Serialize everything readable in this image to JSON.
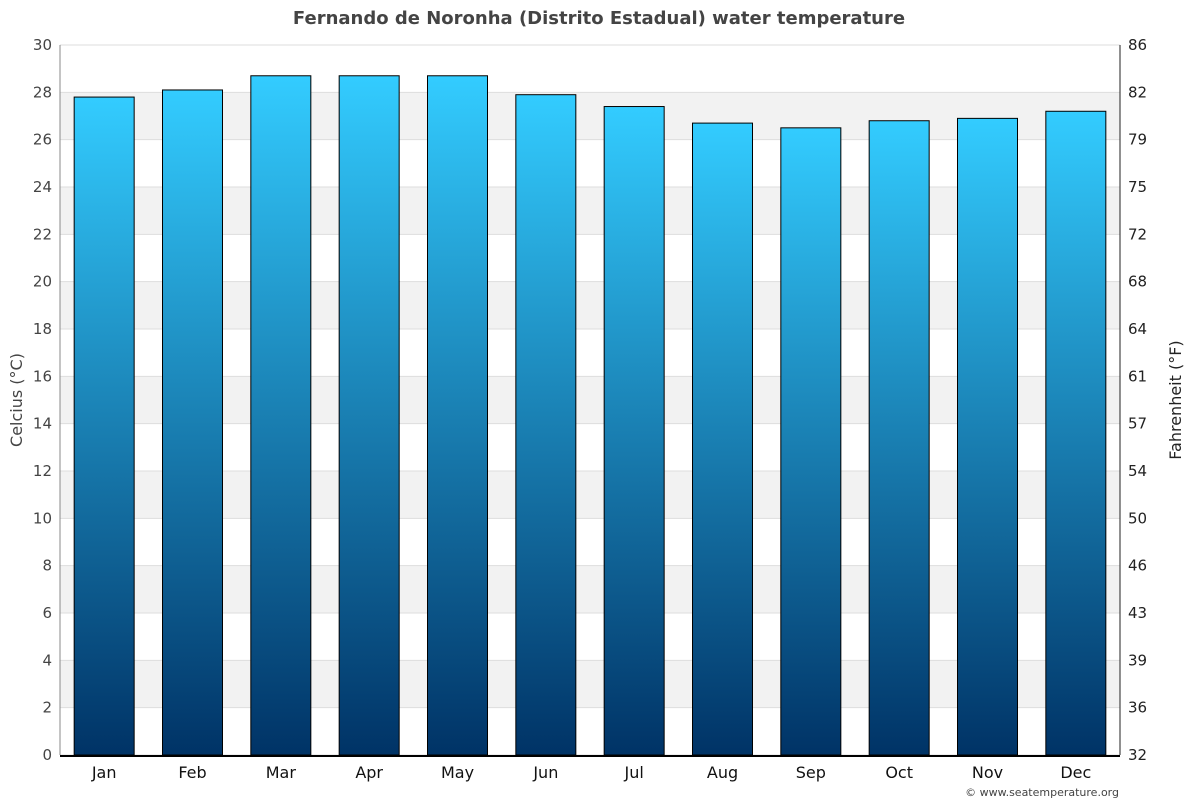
{
  "chart_data": {
    "type": "bar",
    "title": "Fernando de Noronha (Distrito Estadual) water temperature",
    "categories": [
      "Jan",
      "Feb",
      "Mar",
      "Apr",
      "May",
      "Jun",
      "Jul",
      "Aug",
      "Sep",
      "Oct",
      "Nov",
      "Dec"
    ],
    "values": [
      27.8,
      28.1,
      28.7,
      28.7,
      28.7,
      27.9,
      27.4,
      26.7,
      26.5,
      26.8,
      26.9,
      27.2
    ],
    "ylabel": "Celcius (°C)",
    "y2label": "Fahrenheit (°F)",
    "ylim": [
      0,
      30
    ],
    "yticks": [
      "0",
      "2",
      "4",
      "6",
      "8",
      "10",
      "12",
      "14",
      "16",
      "18",
      "20",
      "22",
      "24",
      "26",
      "28",
      "30"
    ],
    "y2ticks": [
      "32",
      "36",
      "39",
      "43",
      "46",
      "50",
      "54",
      "57",
      "61",
      "64",
      "68",
      "72",
      "75",
      "79",
      "82",
      "86"
    ],
    "grid": true,
    "colors": {
      "bar_top": "#33ccff",
      "bar_bottom": "#003366",
      "band": "#f2f2f2"
    }
  },
  "credit": "© www.seatemperature.org"
}
